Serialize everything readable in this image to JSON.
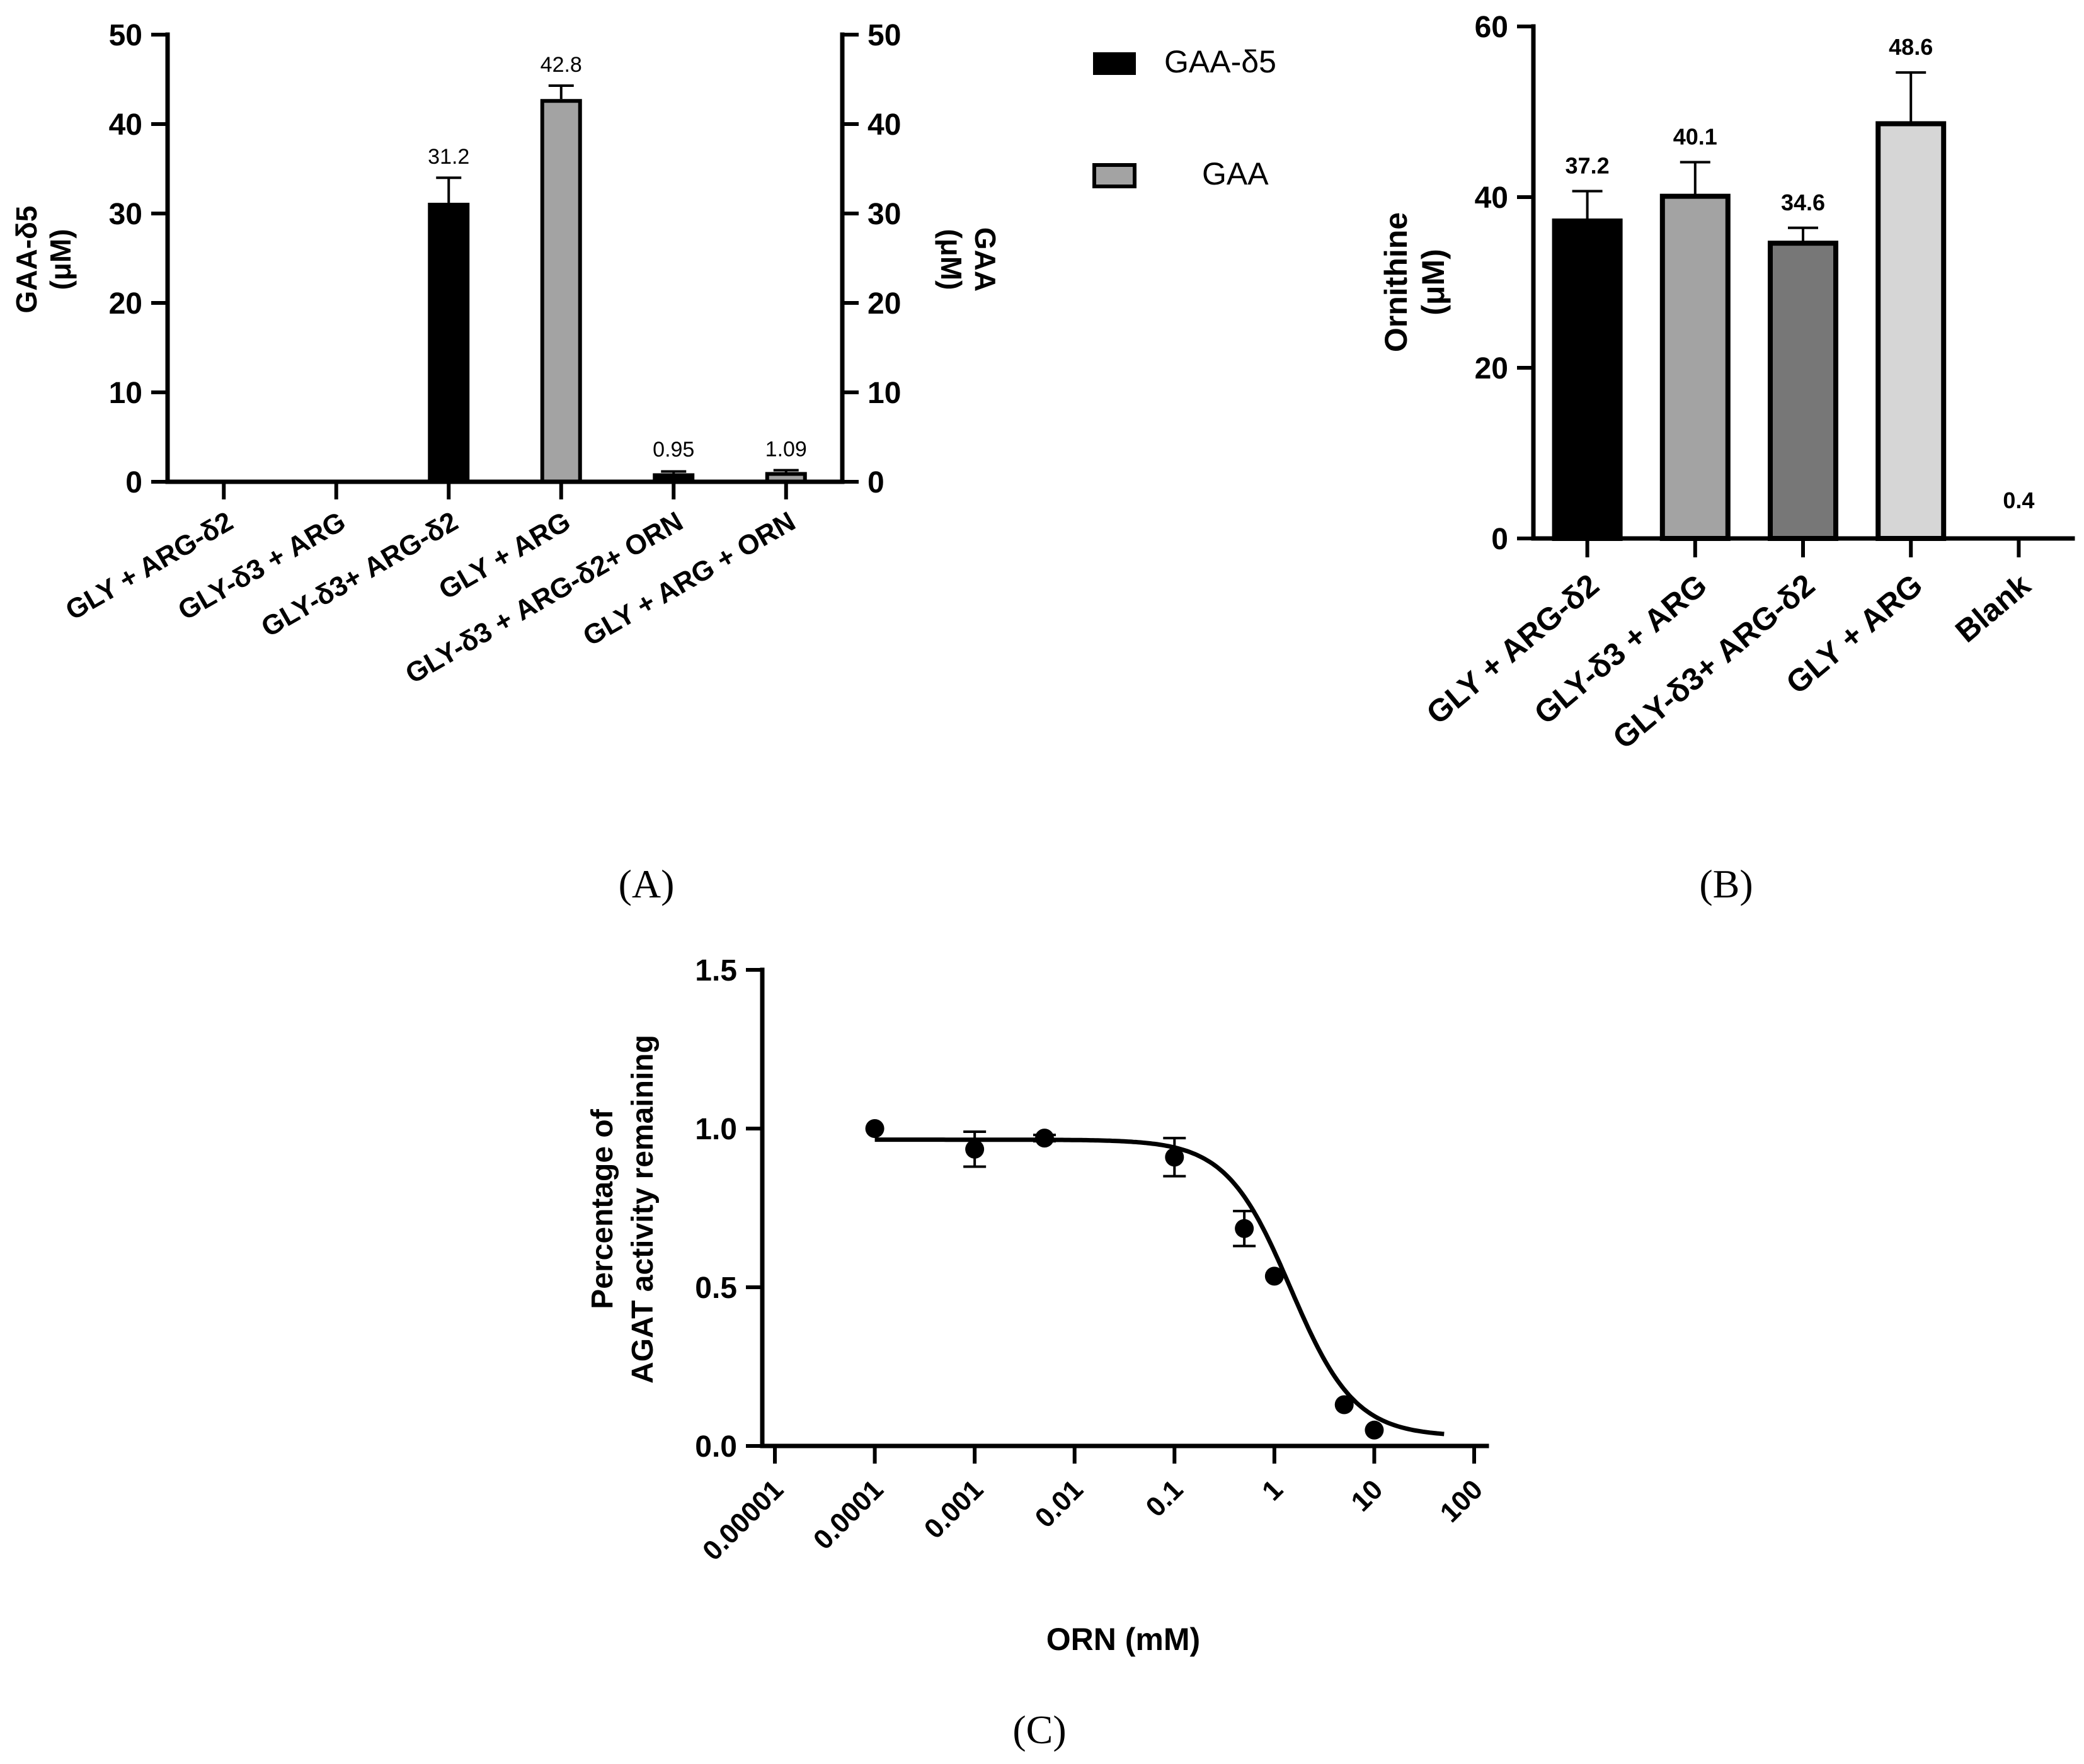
{
  "colors": {
    "black": "#000000",
    "gray1": "#a3a3a3",
    "gray2": "#777777",
    "gray3": "#d6d6d6"
  },
  "chart_data": [
    {
      "panel": "A",
      "panel_label": "(A)",
      "type": "bar",
      "categories": [
        "GLY + ARG-δ2",
        "GLY-δ3 + ARG",
        "GLY-δ3+ ARG-δ2",
        "GLY + ARG",
        "GLY-δ3 + ARG-δ2+ ORN",
        "GLY + ARG + ORN"
      ],
      "series": [
        {
          "name": "GAA-δ5",
          "color": "#000000",
          "values": [
            0,
            0,
            31.2,
            null,
            0.95,
            null
          ],
          "errors": [
            0,
            0,
            2.8,
            null,
            0.2,
            null
          ],
          "labels": [
            "",
            "",
            "31.2",
            "",
            "0.95",
            ""
          ]
        },
        {
          "name": "GAA",
          "color": "#a3a3a3",
          "values": [
            null,
            null,
            null,
            42.8,
            null,
            1.09
          ],
          "errors": [
            null,
            null,
            null,
            1.5,
            null,
            0.2
          ],
          "labels": [
            "",
            "",
            "",
            "42.8",
            "",
            "1.09"
          ]
        }
      ],
      "ylabel_left": [
        "GAA-δ5",
        "(μM)"
      ],
      "ylabel_right": [
        "GAA",
        "(μM)"
      ],
      "ylim": [
        0,
        50
      ],
      "yticks": [
        "0",
        "10",
        "20",
        "30",
        "40",
        "50"
      ],
      "legend": [
        "GAA-δ5",
        "GAA"
      ]
    },
    {
      "panel": "B",
      "panel_label": "(B)",
      "type": "bar",
      "categories": [
        "GLY + ARG-δ2",
        "GLY-δ3 + ARG",
        "GLY-δ3+ ARG-δ2",
        "GLY + ARG",
        "Blank"
      ],
      "values": [
        37.2,
        40.1,
        34.6,
        48.6,
        0.4
      ],
      "errors": [
        3.5,
        4.0,
        1.8,
        6.0,
        0
      ],
      "labels": [
        "37.2",
        "40.1",
        "34.6",
        "48.6",
        "0.4"
      ],
      "colors": [
        "#000000",
        "#a3a3a3",
        "#777777",
        "#d6d6d6",
        "#ffffff"
      ],
      "ylabel": [
        "Ornithine",
        "(μM)"
      ],
      "ylim": [
        0,
        60
      ],
      "yticks": [
        "0",
        "20",
        "40",
        "60"
      ]
    },
    {
      "panel": "C",
      "panel_label": "(C)",
      "type": "scatter",
      "x": [
        0.0001,
        0.001,
        0.005,
        0.1,
        0.5,
        1,
        5,
        10
      ],
      "y": [
        1.0,
        0.935,
        0.97,
        0.91,
        0.685,
        0.535,
        0.13,
        0.05
      ],
      "yerr": [
        0,
        0.055,
        0.01,
        0.06,
        0.055,
        0,
        0,
        0
      ],
      "fit": {
        "top": 0.965,
        "bottom": 0.03,
        "ic50": 1.45,
        "hill": 1.35,
        "x_range": [
          0.0001,
          50
        ]
      },
      "xlabel": "ORN (mM)",
      "ylabel": [
        "Percentage of",
        "AGAT activity remaining"
      ],
      "xscale": "log",
      "xlim": [
        1e-05,
        100
      ],
      "xticks": [
        "0.00001",
        "0.0001",
        "0.001",
        "0.01",
        "0.1",
        "1",
        "10",
        "100"
      ],
      "ylim": [
        0,
        1.5
      ],
      "yticks": [
        "0.0",
        "0.5",
        "1.0",
        "1.5"
      ]
    }
  ]
}
